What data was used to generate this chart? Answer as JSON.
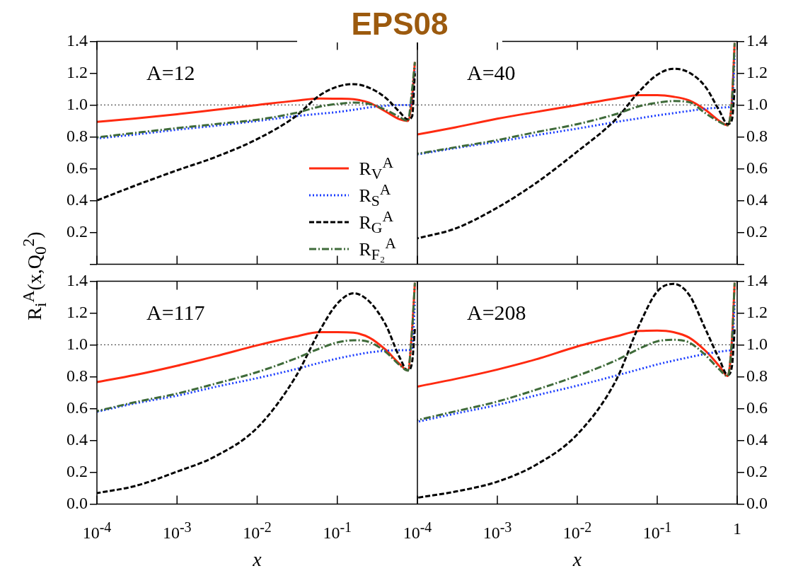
{
  "chart_data": [
    {
      "type": "line",
      "title": "EPS08",
      "ylabel": "R$_{i}$$^{A}$(x,Q$_{0}$$^{2}$)",
      "annotations": [
        "A=12"
      ],
      "log": "x",
      "grid": false,
      "legend": "bottom right",
      "marker": "none",
      "tick_labels": "y",
      "x": [
        0.0001,
        0.0003,
        0.001,
        0.003,
        0.01,
        0.03,
        0.06,
        0.1,
        0.16,
        0.25,
        0.4,
        0.6,
        0.76,
        0.86,
        0.93
      ],
      "xlim": [
        0.0001,
        1
      ],
      "xticks": [
        {
          "value": 0.0001,
          "label": null
        },
        {
          "value": 0.001,
          "label": null
        },
        {
          "value": 0.01,
          "label": null
        },
        {
          "value": 0.1,
          "label": null
        },
        {
          "value": 1,
          "label": null
        }
      ],
      "ylim": [
        0,
        1.4
      ],
      "yticks": [
        {
          "value": 0,
          "label": null
        },
        {
          "value": 0.2,
          "label": "0.2"
        },
        {
          "value": 0.4,
          "label": "0.4"
        },
        {
          "value": 0.6,
          "label": "0.6"
        },
        {
          "value": 0.8,
          "label": "0.8"
        },
        {
          "value": 1,
          "label": "1.0"
        },
        {
          "value": 1.2,
          "label": "1.2"
        },
        {
          "value": 1.4,
          "label": "1.4"
        }
      ],
      "ref_lines": [
        {
          "axis": "y",
          "value": 1,
          "color": "#555555",
          "line_style": "dotted"
        }
      ],
      "series": [
        {
          "name": "R$_{V}$$^{A}$",
          "color": "#ff2a10",
          "line_style": "solid",
          "values": [
            0.894,
            0.915,
            0.942,
            0.97,
            1.0,
            1.027,
            1.041,
            1.04,
            1.036,
            1.015,
            0.96,
            0.91,
            0.9,
            1.05,
            1.27
          ]
        },
        {
          "name": "R$_{S}$$^{A}$",
          "color": "#1a3cff",
          "line_style": "dotted",
          "values": [
            0.79,
            0.815,
            0.845,
            0.87,
            0.9,
            0.93,
            0.945,
            0.956,
            0.97,
            0.985,
            0.995,
            1.0,
            1.0,
            1.0,
            1.23
          ]
        },
        {
          "name": "R$_{G}$$^{A}$",
          "color": "#000000",
          "line_style": "dashed",
          "values": [
            0.401,
            0.494,
            0.59,
            0.673,
            0.786,
            0.928,
            1.06,
            1.115,
            1.131,
            1.108,
            1.046,
            0.956,
            0.91,
            0.93,
            1.2
          ]
        },
        {
          "name": "R$_{F₂}$$^{A}$",
          "color": "#3f6b3a",
          "line_style": "dashdot",
          "values": [
            0.797,
            0.825,
            0.855,
            0.88,
            0.908,
            0.95,
            0.99,
            1.007,
            1.015,
            1.007,
            0.97,
            0.924,
            0.9,
            1.1,
            1.27
          ]
        }
      ]
    },
    {
      "type": "line",
      "annotations": [
        "A=40"
      ],
      "log": "x",
      "grid": false,
      "marker": "none",
      "tick_labels": "y",
      "x": [
        0.0001,
        0.0003,
        0.001,
        0.003,
        0.01,
        0.03,
        0.06,
        0.1,
        0.16,
        0.25,
        0.4,
        0.6,
        0.76,
        0.86,
        0.93
      ],
      "xlim": [
        0.0001,
        1
      ],
      "xticks": [
        {
          "value": 0.0001,
          "label": null
        },
        {
          "value": 0.001,
          "label": null
        },
        {
          "value": 0.01,
          "label": null
        },
        {
          "value": 0.1,
          "label": null
        },
        {
          "value": 1,
          "label": null
        }
      ],
      "ylim": [
        0,
        1.4
      ],
      "yticks": [
        {
          "value": 0,
          "label": null
        },
        {
          "value": 0.2,
          "label": "0.2"
        },
        {
          "value": 0.4,
          "label": "0.4"
        },
        {
          "value": 0.6,
          "label": "0.6"
        },
        {
          "value": 0.8,
          "label": "0.8"
        },
        {
          "value": 1,
          "label": "1.0"
        },
        {
          "value": 1.2,
          "label": "1.2"
        },
        {
          "value": 1.4,
          "label": "1.4"
        }
      ],
      "ref_lines": [
        {
          "axis": "y",
          "value": 1,
          "color": "#555555",
          "line_style": "dotted"
        }
      ],
      "series": [
        {
          "color": "#ff2a10",
          "line_style": "solid",
          "values": [
            0.815,
            0.86,
            0.914,
            0.956,
            1.0,
            1.041,
            1.062,
            1.062,
            1.052,
            1.029,
            0.97,
            0.9,
            0.873,
            1.03,
            1.39
          ]
        },
        {
          "color": "#1a3cff",
          "line_style": "dotted",
          "values": [
            0.69,
            0.73,
            0.77,
            0.81,
            0.852,
            0.893,
            0.917,
            0.935,
            0.949,
            0.963,
            0.977,
            0.983,
            0.986,
            1.0,
            1.31
          ]
        },
        {
          "color": "#000000",
          "line_style": "dashed",
          "values": [
            0.163,
            0.225,
            0.356,
            0.508,
            0.708,
            0.908,
            1.087,
            1.19,
            1.228,
            1.204,
            1.115,
            0.963,
            0.88,
            0.908,
            1.1
          ]
        },
        {
          "color": "#3f6b3a",
          "line_style": "dashdot",
          "values": [
            0.694,
            0.735,
            0.78,
            0.829,
            0.88,
            0.942,
            0.993,
            1.014,
            1.025,
            1.018,
            0.949,
            0.894,
            0.873,
            1.03,
            1.39
          ]
        }
      ]
    },
    {
      "type": "line",
      "xlabel": "x",
      "annotations": [
        "A=117"
      ],
      "log": "x",
      "grid": false,
      "marker": "none",
      "x": [
        0.0001,
        0.0003,
        0.001,
        0.003,
        0.01,
        0.03,
        0.06,
        0.1,
        0.16,
        0.25,
        0.4,
        0.6,
        0.76,
        0.86,
        0.93
      ],
      "xlim": [
        0.0001,
        1
      ],
      "xticks": [
        {
          "value": 0.0001,
          "label": "10$^{-4}$"
        },
        {
          "value": 0.001,
          "label": "10$^{-3}$"
        },
        {
          "value": 0.01,
          "label": "10$^{-2}$"
        },
        {
          "value": 0.1,
          "label": "10$^{-1}$"
        },
        {
          "value": 1,
          "label": null
        }
      ],
      "ylim": [
        0,
        1.4
      ],
      "yticks": [
        {
          "value": 0,
          "label": "0.0"
        },
        {
          "value": 0.2,
          "label": "0.2"
        },
        {
          "value": 0.4,
          "label": "0.4"
        },
        {
          "value": 0.6,
          "label": "0.6"
        },
        {
          "value": 0.8,
          "label": "0.8"
        },
        {
          "value": 1,
          "label": "1.0"
        },
        {
          "value": 1.2,
          "label": "1.2"
        },
        {
          "value": 1.4,
          "label": "1.4"
        }
      ],
      "ref_lines": [
        {
          "axis": "y",
          "value": 1,
          "color": "#555555",
          "line_style": "dotted"
        }
      ],
      "series": [
        {
          "color": "#ff2a10",
          "line_style": "solid",
          "values": [
            0.766,
            0.811,
            0.869,
            0.928,
            0.997,
            1.052,
            1.08,
            1.08,
            1.076,
            1.046,
            0.97,
            0.88,
            0.839,
            1.1,
            1.39
          ]
        },
        {
          "color": "#1a3cff",
          "line_style": "dotted",
          "values": [
            0.58,
            0.633,
            0.681,
            0.736,
            0.791,
            0.847,
            0.887,
            0.914,
            0.935,
            0.952,
            0.963,
            0.967,
            0.967,
            0.977,
            1.27
          ]
        },
        {
          "color": "#000000",
          "line_style": "dashed",
          "values": [
            0.069,
            0.114,
            0.204,
            0.3,
            0.479,
            0.797,
            1.087,
            1.259,
            1.324,
            1.273,
            1.128,
            0.921,
            0.839,
            0.894,
            1.1
          ]
        },
        {
          "color": "#3f6b3a",
          "line_style": "dashdot",
          "values": [
            0.584,
            0.64,
            0.694,
            0.756,
            0.829,
            0.914,
            0.977,
            1.015,
            1.029,
            1.018,
            0.956,
            0.873,
            0.839,
            1.1,
            1.39
          ]
        }
      ]
    },
    {
      "type": "line",
      "xlabel": "x",
      "annotations": [
        "A=208"
      ],
      "log": "x",
      "grid": false,
      "marker": "none",
      "x": [
        0.0001,
        0.0003,
        0.001,
        0.003,
        0.01,
        0.03,
        0.06,
        0.1,
        0.16,
        0.25,
        0.4,
        0.6,
        0.76,
        0.86,
        0.93
      ],
      "xlim": [
        0.0001,
        1
      ],
      "xticks": [
        {
          "value": 0.0001,
          "label": "10$^{-4}$"
        },
        {
          "value": 0.001,
          "label": "10$^{-3}$"
        },
        {
          "value": 0.01,
          "label": "10$^{-2}$"
        },
        {
          "value": 0.1,
          "label": "10$^{-1}$"
        },
        1
      ],
      "ylim": [
        0,
        1.4
      ],
      "yticks": [
        {
          "value": 0,
          "label": "0.0"
        },
        {
          "value": 0.2,
          "label": "0.2"
        },
        {
          "value": 0.4,
          "label": "0.4"
        },
        {
          "value": 0.6,
          "label": "0.6"
        },
        {
          "value": 0.8,
          "label": "0.8"
        },
        {
          "value": 1,
          "label": "1.0"
        },
        {
          "value": 1.2,
          "label": "1.2"
        },
        {
          "value": 1.4,
          "label": "1.4"
        }
      ],
      "ref_lines": [
        {
          "axis": "y",
          "value": 1,
          "color": "#555555",
          "line_style": "dotted"
        }
      ],
      "series": [
        {
          "color": "#ff2a10",
          "line_style": "solid",
          "values": [
            0.738,
            0.786,
            0.845,
            0.908,
            0.99,
            1.052,
            1.087,
            1.09,
            1.08,
            1.046,
            0.963,
            0.866,
            0.804,
            1.03,
            1.39
          ]
        },
        {
          "color": "#1a3cff",
          "line_style": "dotted",
          "values": [
            0.517,
            0.569,
            0.623,
            0.682,
            0.744,
            0.806,
            0.847,
            0.877,
            0.901,
            0.922,
            0.943,
            0.957,
            0.963,
            0.977,
            1.27
          ]
        },
        {
          "color": "#000000",
          "line_style": "dashed",
          "values": [
            0.04,
            0.079,
            0.141,
            0.245,
            0.438,
            0.77,
            1.128,
            1.335,
            1.383,
            1.315,
            1.1,
            0.908,
            0.811,
            0.866,
            1.1
          ]
        },
        {
          "color": "#3f6b3a",
          "line_style": "dashdot",
          "values": [
            0.528,
            0.583,
            0.644,
            0.717,
            0.806,
            0.901,
            0.977,
            1.022,
            1.032,
            1.015,
            0.936,
            0.845,
            0.804,
            1.03,
            1.39
          ]
        }
      ]
    }
  ]
}
